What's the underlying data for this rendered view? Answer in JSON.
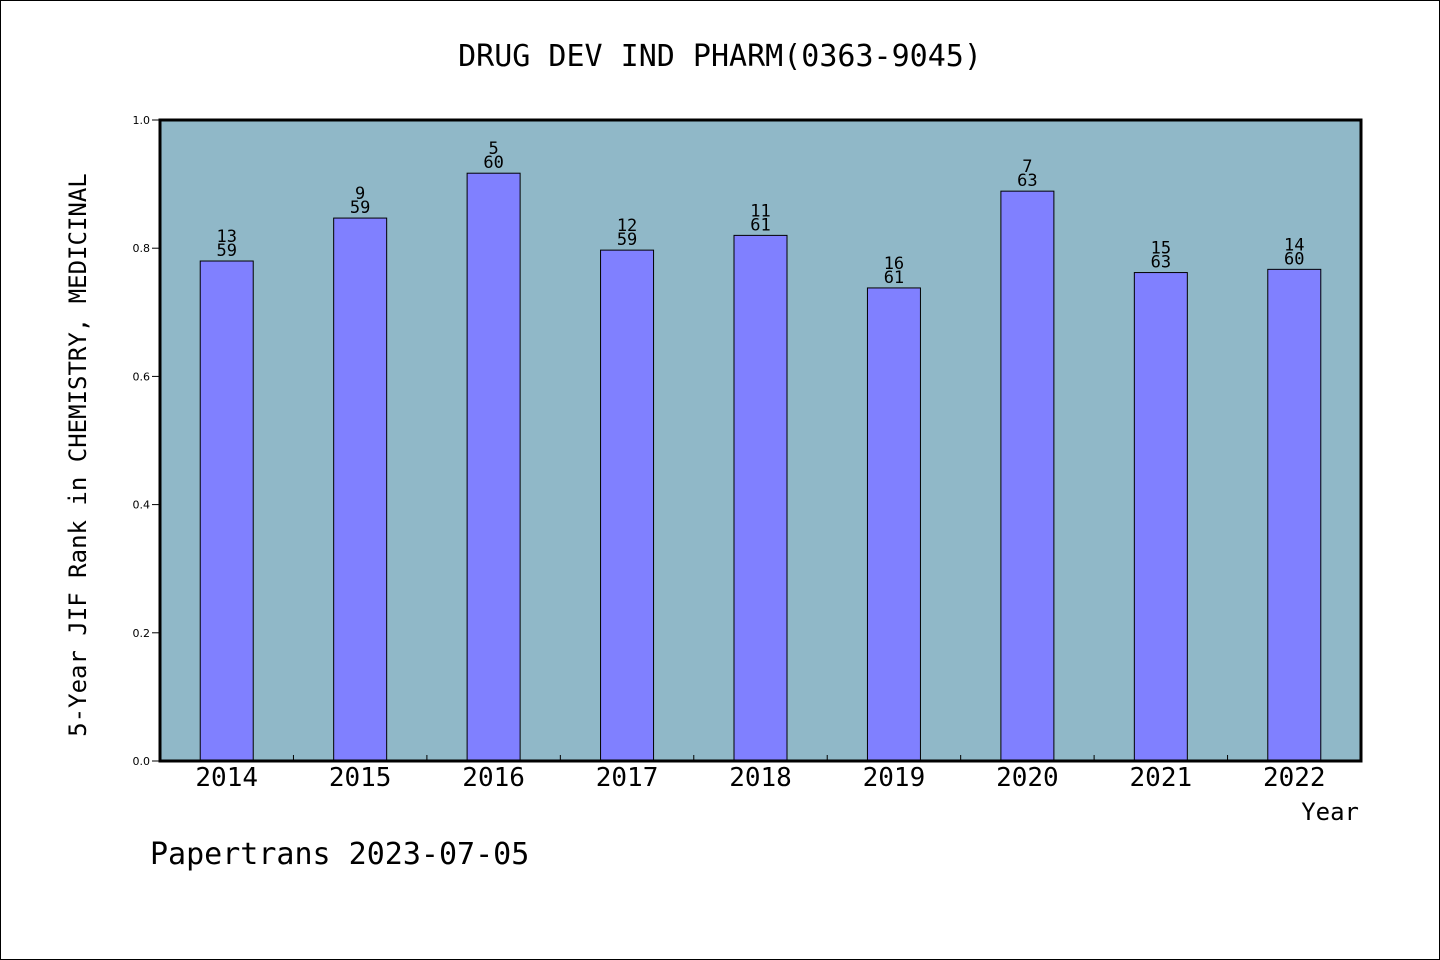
{
  "chart_data": {
    "type": "bar",
    "title": "DRUG DEV IND PHARM(0363-9045)",
    "xlabel": "Year",
    "ylabel": "5-Year JIF Rank in CHEMISTRY, MEDICINAL",
    "ylim": [
      0,
      1.0
    ],
    "yticks": [
      "0.0",
      "0.2",
      "0.4",
      "0.6",
      "0.8",
      "1.0"
    ],
    "categories": [
      "2014",
      "2015",
      "2016",
      "2017",
      "2018",
      "2019",
      "2020",
      "2021",
      "2022"
    ],
    "values": [
      0.78,
      0.847,
      0.917,
      0.797,
      0.82,
      0.738,
      0.889,
      0.762,
      0.767
    ],
    "bar_labels": [
      {
        "rank": "13",
        "total": "59"
      },
      {
        "rank": "9",
        "total": "59"
      },
      {
        "rank": "5",
        "total": "60"
      },
      {
        "rank": "12",
        "total": "59"
      },
      {
        "rank": "11",
        "total": "61"
      },
      {
        "rank": "16",
        "total": "61"
      },
      {
        "rank": "7",
        "total": "63"
      },
      {
        "rank": "15",
        "total": "63"
      },
      {
        "rank": "14",
        "total": "60"
      }
    ],
    "grid": false,
    "colors": {
      "plot_background": "#90b8c8",
      "bar_fill": "#8080ff",
      "bar_stroke": "#000000"
    }
  },
  "footer": {
    "watermark": "Papertrans 2023-07-05"
  }
}
